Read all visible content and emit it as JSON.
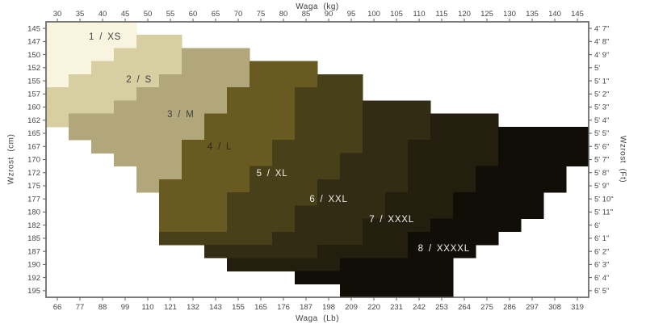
{
  "page": {
    "background": "#ffffff",
    "description_text": "Stepped size chart mapping body weight and height to sizes 1/XS through 8/XXXXL"
  },
  "chart_data": {
    "type": "heatmap",
    "grid": {
      "columns": 24,
      "rows": 21
    },
    "x_axis": {
      "title": "Waga  (kg)",
      "position": "top",
      "ticks": [
        "30",
        "35",
        "40",
        "45",
        "50",
        "55",
        "60",
        "65",
        "70",
        "75",
        "80",
        "85",
        "90",
        "95",
        "100",
        "105",
        "110",
        "115",
        "120",
        "125",
        "130",
        "135",
        "140",
        "145"
      ]
    },
    "x2_axis": {
      "title": "Waga  (Lb)",
      "position": "bottom",
      "ticks": [
        "66",
        "77",
        "88",
        "99",
        "110",
        "121",
        "132",
        "143",
        "155",
        "165",
        "176",
        "187",
        "198",
        "209",
        "220",
        "231",
        "242",
        "253",
        "264",
        "275",
        "286",
        "297",
        "308",
        "319"
      ]
    },
    "y_axis": {
      "title": "Wzrost  (cm)",
      "position": "left",
      "ticks": [
        "145",
        "147",
        "150",
        "152",
        "155",
        "157",
        "160",
        "162",
        "165",
        "167",
        "170",
        "172",
        "175",
        "177",
        "180",
        "182",
        "185",
        "187",
        "190",
        "192",
        "195"
      ]
    },
    "y2_axis": {
      "title": "Wzrost  (Ft)",
      "position": "right",
      "ticks": [
        "4' 7\"",
        "4' 8\"",
        "4' 9\"",
        "5'",
        "5' 1\"",
        "5' 2\"",
        "5' 3\"",
        "5' 4\"",
        "5' 5\"",
        "5' 6\"",
        "5' 7\"",
        "5' 8\"",
        "5' 9\"",
        "5' 10\"",
        "5' 11\"",
        "6'",
        "6' 1\"",
        "6' 2\"",
        "6' 3\"",
        "6' 4\"",
        "6' 5\""
      ],
      "note_last_visible": "6' 5\""
    },
    "axis_text_color": "#474747",
    "border_color": "#5c5c5c",
    "sizes": [
      {
        "id": "xs",
        "label": "1  /  XS",
        "color": "#f9f4df",
        "label_color": "#3f3f3f",
        "label_pos": [
          2.61,
          1.11
        ],
        "rows": {
          "0": [
            0,
            3
          ],
          "1": [
            0,
            3
          ],
          "2": [
            0,
            2
          ],
          "3": [
            0,
            1
          ],
          "4": [
            0,
            0
          ]
        }
      },
      {
        "id": "s",
        "label": "2  /  S",
        "color": "#d7cfa2",
        "label_color": "#3f3f3f",
        "label_pos": [
          4.11,
          4.37
        ],
        "rows": {
          "1": [
            4,
            5
          ],
          "2": [
            3,
            5
          ],
          "3": [
            2,
            5
          ],
          "4": [
            1,
            4
          ],
          "5": [
            0,
            3
          ],
          "6": [
            0,
            2
          ],
          "7": [
            0,
            0
          ]
        }
      },
      {
        "id": "m",
        "label": "3  /  M",
        "color": "#b1a77b",
        "label_color": "#3f3f3f",
        "label_pos": [
          5.96,
          7.02
        ],
        "rows": {
          "2": [
            6,
            8
          ],
          "3": [
            6,
            8
          ],
          "4": [
            5,
            8
          ],
          "5": [
            4,
            7
          ],
          "6": [
            3,
            7
          ],
          "7": [
            1,
            6
          ],
          "8": [
            1,
            6
          ],
          "9": [
            2,
            5
          ],
          "10": [
            3,
            5
          ],
          "11": [
            4,
            5
          ],
          "12": [
            4,
            4
          ]
        }
      },
      {
        "id": "l",
        "label": "4  /  L",
        "color": "#685a20",
        "label_color": "#2e2a14",
        "label_pos": [
          7.68,
          9.48
        ],
        "rows": {
          "3": [
            9,
            11
          ],
          "4": [
            9,
            11
          ],
          "5": [
            8,
            10
          ],
          "6": [
            8,
            10
          ],
          "7": [
            7,
            10
          ],
          "8": [
            7,
            10
          ],
          "9": [
            6,
            9
          ],
          "10": [
            6,
            9
          ],
          "11": [
            6,
            8
          ],
          "12": [
            5,
            8
          ],
          "13": [
            5,
            7
          ],
          "14": [
            5,
            7
          ],
          "15": [
            5,
            7
          ]
        }
      },
      {
        "id": "xl",
        "label": "5  /  XL",
        "color": "#474019",
        "label_color": "#efefec",
        "label_pos": [
          10.0,
          11.52
        ],
        "rows": {
          "4": [
            12,
            13
          ],
          "5": [
            11,
            13
          ],
          "6": [
            11,
            13
          ],
          "7": [
            11,
            13
          ],
          "8": [
            11,
            13
          ],
          "9": [
            10,
            13
          ],
          "10": [
            10,
            12
          ],
          "11": [
            9,
            12
          ],
          "12": [
            9,
            11
          ],
          "13": [
            8,
            11
          ],
          "14": [
            8,
            10
          ],
          "15": [
            8,
            10
          ],
          "16": [
            5,
            9
          ]
        }
      },
      {
        "id": "xxl",
        "label": "6  /  XXL",
        "color": "#322c15",
        "label_color": "#efefec",
        "label_pos": [
          12.5,
          13.49
        ],
        "rows": {
          "6": [
            14,
            16
          ],
          "7": [
            14,
            16
          ],
          "8": [
            14,
            16
          ],
          "9": [
            14,
            15
          ],
          "10": [
            13,
            15
          ],
          "11": [
            13,
            15
          ],
          "12": [
            12,
            15
          ],
          "13": [
            12,
            14
          ],
          "14": [
            11,
            14
          ],
          "15": [
            11,
            13
          ],
          "16": [
            10,
            13
          ],
          "17": [
            7,
            11
          ]
        }
      },
      {
        "id": "xxxl",
        "label": "7  /  XXXL",
        "color": "#241e0f",
        "label_color": "#f4f4f2",
        "label_pos": [
          15.29,
          15.03
        ],
        "rows": {
          "7": [
            17,
            19
          ],
          "8": [
            17,
            19
          ],
          "9": [
            16,
            19
          ],
          "10": [
            16,
            19
          ],
          "11": [
            16,
            18
          ],
          "12": [
            16,
            18
          ],
          "13": [
            15,
            17
          ],
          "14": [
            15,
            17
          ],
          "15": [
            14,
            16
          ],
          "16": [
            14,
            15
          ],
          "17": [
            12,
            15
          ],
          "18": [
            8,
            12
          ]
        }
      },
      {
        "id": "xxxxl",
        "label": "8  /  XXXXL",
        "color": "#110d07",
        "label_color": "#f4f4f2",
        "label_pos": [
          17.6,
          17.25
        ],
        "rows": {
          "8": [
            20,
            23
          ],
          "9": [
            20,
            23
          ],
          "10": [
            20,
            23
          ],
          "11": [
            19,
            22
          ],
          "12": [
            19,
            22
          ],
          "13": [
            18,
            21
          ],
          "14": [
            18,
            21
          ],
          "15": [
            17,
            20
          ],
          "16": [
            16,
            19
          ],
          "17": [
            16,
            18
          ],
          "18": [
            13,
            17
          ],
          "19": [
            11,
            17
          ],
          "20": [
            13,
            17
          ]
        }
      }
    ]
  }
}
